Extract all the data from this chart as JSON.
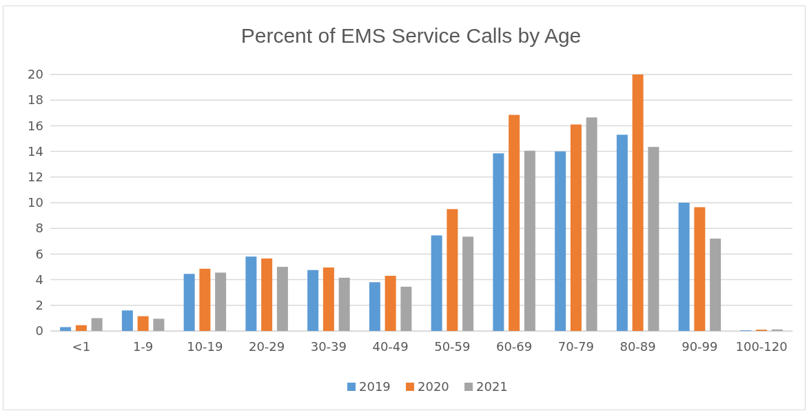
{
  "chart_data": {
    "type": "bar",
    "title": "Percent of EMS Service Calls by Age",
    "categories": [
      "<1",
      "1-9",
      "10-19",
      "20-29",
      "30-39",
      "40-49",
      "50-59",
      "60-69",
      "70-79",
      "80-89",
      "90-99",
      "100-120"
    ],
    "series": [
      {
        "name": "2019",
        "color": "#5b9bd5",
        "values": [
          0.3,
          1.6,
          4.45,
          5.8,
          4.75,
          3.8,
          7.45,
          13.85,
          14.0,
          15.3,
          10.0,
          0.05
        ]
      },
      {
        "name": "2020",
        "color": "#ed7d31",
        "values": [
          0.45,
          1.15,
          4.85,
          5.65,
          4.95,
          4.3,
          9.5,
          16.85,
          16.1,
          20.0,
          9.65,
          0.1
        ]
      },
      {
        "name": "2021",
        "color": "#a5a5a5",
        "values": [
          1.0,
          0.95,
          4.55,
          5.0,
          4.15,
          3.45,
          7.35,
          14.05,
          16.65,
          14.35,
          7.2,
          0.12
        ]
      }
    ],
    "ylim": [
      0,
      20
    ],
    "yticks": [
      0,
      2,
      4,
      6,
      8,
      10,
      12,
      14,
      16,
      18,
      20
    ],
    "grid": "y",
    "legend": "bottom"
  }
}
